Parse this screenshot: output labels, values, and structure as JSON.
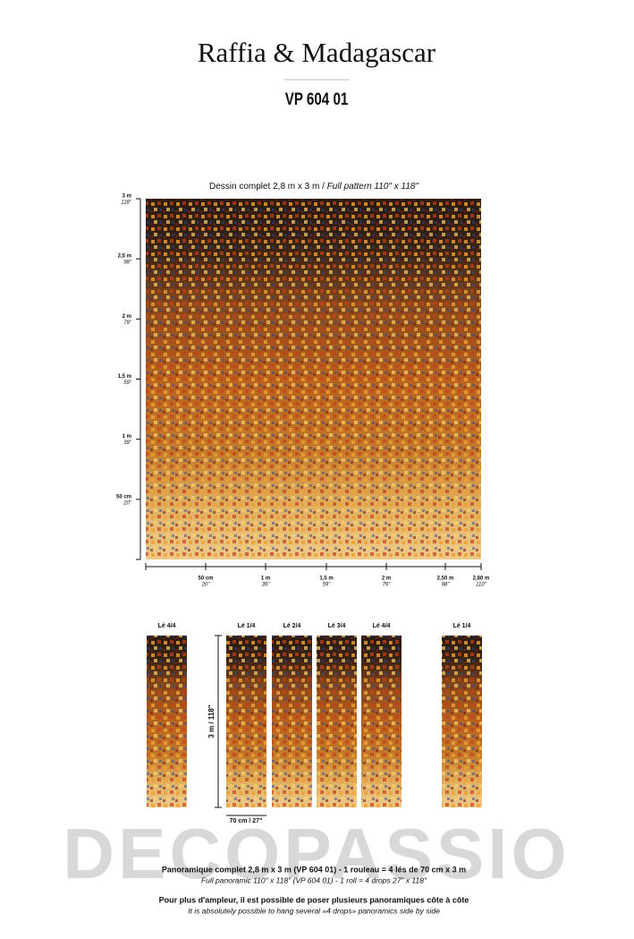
{
  "header": {
    "title": "Raffia & Madagascar",
    "code": "VP 604 01"
  },
  "pattern": {
    "caption_fr": "Dessin complet 2,8 m x 3 m / ",
    "caption_en": "Full pattern 110\" x 118\"",
    "vertical_scale": [
      {
        "metric": "3 m",
        "imperial": "118\""
      },
      {
        "metric": "2,5 m",
        "imperial": "98\""
      },
      {
        "metric": "2 m",
        "imperial": "79\""
      },
      {
        "metric": "1,5 m",
        "imperial": "59\""
      },
      {
        "metric": "1 m",
        "imperial": "39\""
      },
      {
        "metric": "50 cm",
        "imperial": "20\""
      }
    ],
    "horizontal_scale": [
      {
        "metric": "50 cm",
        "imperial": "20\""
      },
      {
        "metric": "1 m",
        "imperial": "39\""
      },
      {
        "metric": "1,5 m",
        "imperial": "59\""
      },
      {
        "metric": "2 m",
        "imperial": "79\""
      },
      {
        "metric": "2,50 m",
        "imperial": "98\""
      },
      {
        "metric": "2,80 m",
        "imperial": "110\""
      }
    ]
  },
  "panels": {
    "labels": [
      "Lé 4/4",
      "Lé 1/4",
      "Lé 2/4",
      "Lé 3/4",
      "Lé 4/4",
      "Lé 1/4"
    ],
    "height_label": "3 m / 118\"",
    "width_label": "70 cm / 27\""
  },
  "watermark": "DECOPASSIO",
  "footer": {
    "line1": "Panoramique complet 2,8 m x 3 m (VP 604 01) - 1 rouleau = 4 lés de 70 cm x 3 m",
    "line2": "Full panoramic 110\" x 118\" (VP 604 01) - 1 roll = 4 drops 27\" x 118\"",
    "line3": "Pour plus d'ampleur, il est possible de poser plusieurs panoramiques côte à côte",
    "line4": "It is absolutely possible to hang several «4 drops» panoramics side by side"
  }
}
